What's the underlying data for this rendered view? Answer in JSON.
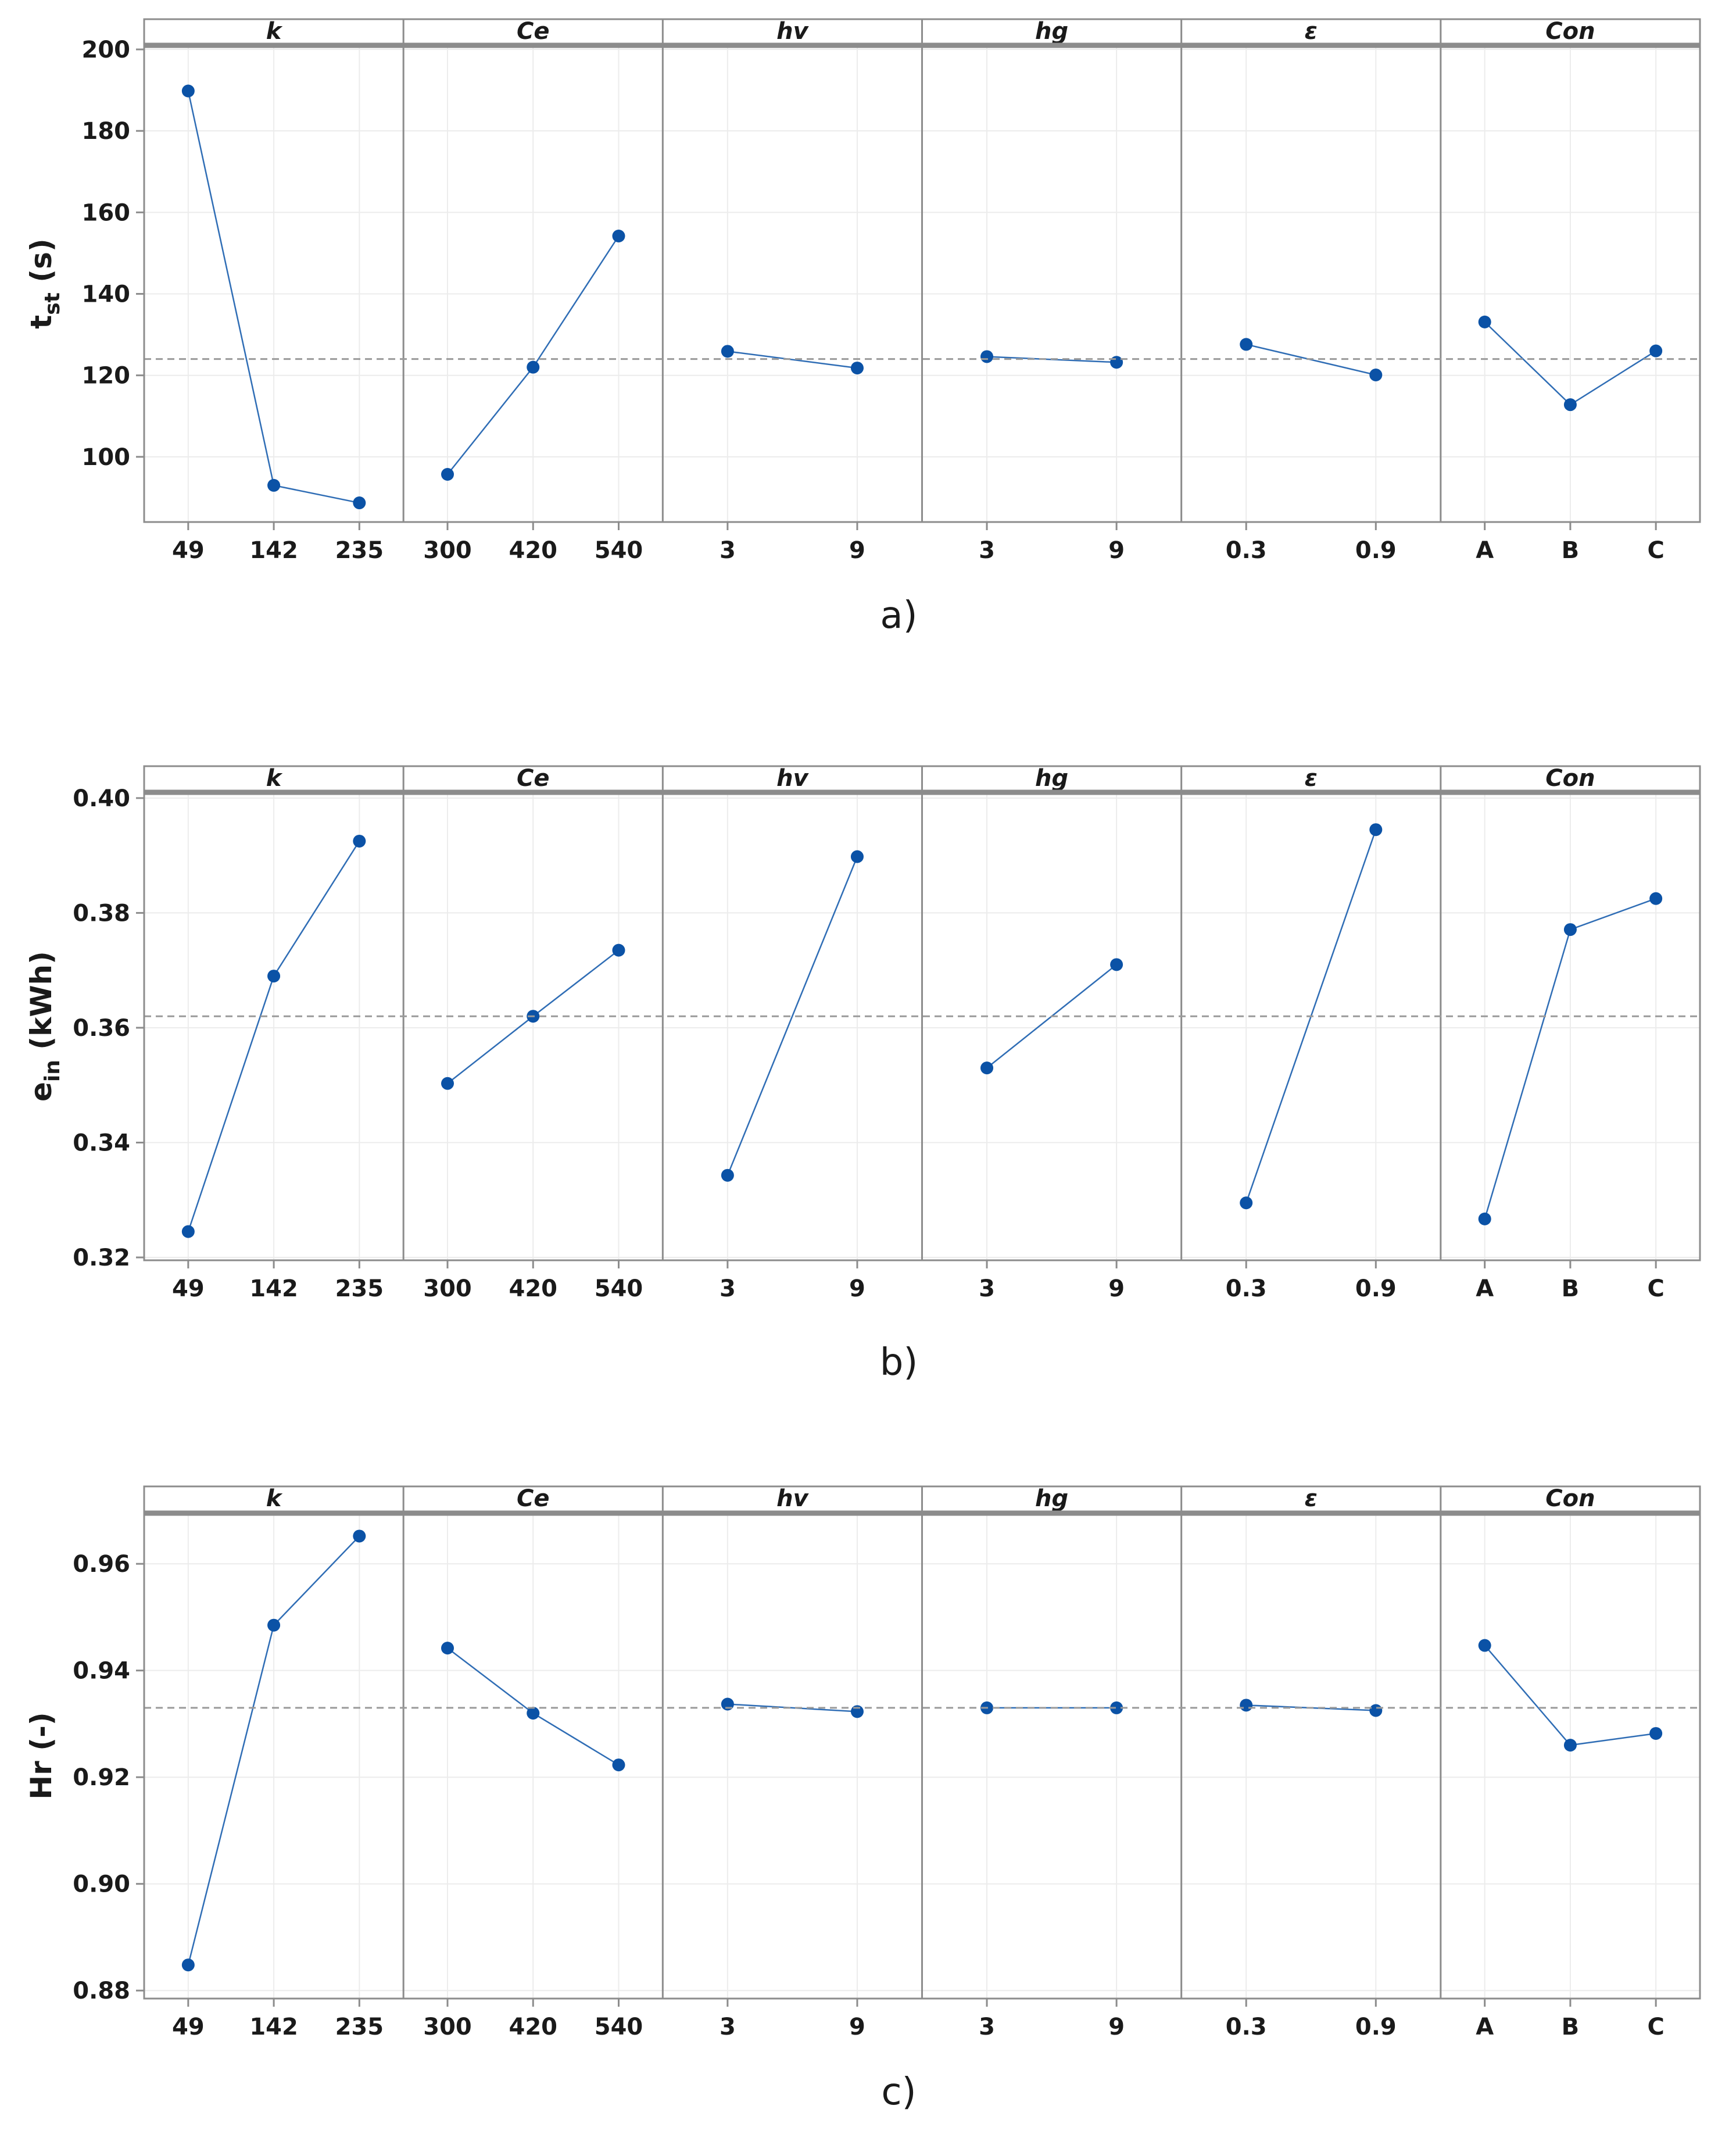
{
  "colors": {
    "series": "#0b52a6",
    "frame": "#8c8c8c",
    "mean": "#9a9a9a"
  },
  "chart_data": [
    {
      "type": "line",
      "panel_label": "a)",
      "ylabel": "t",
      "ylabel_sub": "st",
      "ylabel_suffix": " (s)",
      "ylim": [
        84,
        201
      ],
      "yticks": [
        100,
        120,
        140,
        160,
        180,
        200
      ],
      "mean": 124,
      "factors": [
        {
          "name": "k",
          "levels": [
            "49",
            "142",
            "235"
          ],
          "values": [
            189.8,
            93.0,
            88.7
          ]
        },
        {
          "name": "Ce",
          "levels": [
            "300",
            "420",
            "540"
          ],
          "values": [
            95.7,
            122.0,
            154.2
          ]
        },
        {
          "name": "hv",
          "levels": [
            "3",
            "9"
          ],
          "values": [
            125.9,
            121.8
          ]
        },
        {
          "name": "hg",
          "levels": [
            "3",
            "9"
          ],
          "values": [
            124.6,
            123.2
          ]
        },
        {
          "name": "ε",
          "levels": [
            "0.3",
            "0.9"
          ],
          "values": [
            127.6,
            120.1
          ]
        },
        {
          "name": "Con",
          "levels": [
            "A",
            "B",
            "C"
          ],
          "values": [
            133.1,
            112.8,
            126.0
          ]
        }
      ]
    },
    {
      "type": "line",
      "panel_label": "b)",
      "ylabel": "e",
      "ylabel_sub": "in",
      "ylabel_suffix": " (kWh)",
      "ylim": [
        0.3195,
        0.401
      ],
      "yticks": [
        0.32,
        0.34,
        0.36,
        0.38,
        0.4
      ],
      "ytick_labels": [
        "0.32",
        "0.34",
        "0.36",
        "0.38",
        "0.40"
      ],
      "mean": 0.362,
      "factors": [
        {
          "name": "k",
          "levels": [
            "49",
            "142",
            "235"
          ],
          "values": [
            0.3245,
            0.369,
            0.3925
          ]
        },
        {
          "name": "Ce",
          "levels": [
            "300",
            "420",
            "540"
          ],
          "values": [
            0.3503,
            0.362,
            0.3735
          ]
        },
        {
          "name": "hv",
          "levels": [
            "3",
            "9"
          ],
          "values": [
            0.3343,
            0.3898
          ]
        },
        {
          "name": "hg",
          "levels": [
            "3",
            "9"
          ],
          "values": [
            0.353,
            0.371
          ]
        },
        {
          "name": "ε",
          "levels": [
            "0.3",
            "0.9"
          ],
          "values": [
            0.3295,
            0.3945
          ]
        },
        {
          "name": "Con",
          "levels": [
            "A",
            "B",
            "C"
          ],
          "values": [
            0.3267,
            0.3771,
            0.3825
          ]
        }
      ]
    },
    {
      "type": "line",
      "panel_label": "c)",
      "ylabel": "Hr (-)",
      "ylabel_sub": "",
      "ylabel_suffix": "",
      "ylim": [
        0.8785,
        0.9695
      ],
      "yticks": [
        0.88,
        0.9,
        0.92,
        0.94,
        0.96
      ],
      "ytick_labels": [
        "0.88",
        "0.90",
        "0.92",
        "0.94",
        "0.96"
      ],
      "mean": 0.933,
      "factors": [
        {
          "name": "k",
          "levels": [
            "49",
            "142",
            "235"
          ],
          "values": [
            0.8848,
            0.9485,
            0.9652
          ]
        },
        {
          "name": "Ce",
          "levels": [
            "300",
            "420",
            "540"
          ],
          "values": [
            0.9442,
            0.932,
            0.9223
          ]
        },
        {
          "name": "hv",
          "levels": [
            "3",
            "9"
          ],
          "values": [
            0.9337,
            0.9323
          ]
        },
        {
          "name": "hg",
          "levels": [
            "3",
            "9"
          ],
          "values": [
            0.933,
            0.933
          ]
        },
        {
          "name": "ε",
          "levels": [
            "0.3",
            "0.9"
          ],
          "values": [
            0.9335,
            0.9325
          ]
        },
        {
          "name": "Con",
          "levels": [
            "A",
            "B",
            "C"
          ],
          "values": [
            0.9447,
            0.926,
            0.9282
          ]
        }
      ]
    }
  ]
}
